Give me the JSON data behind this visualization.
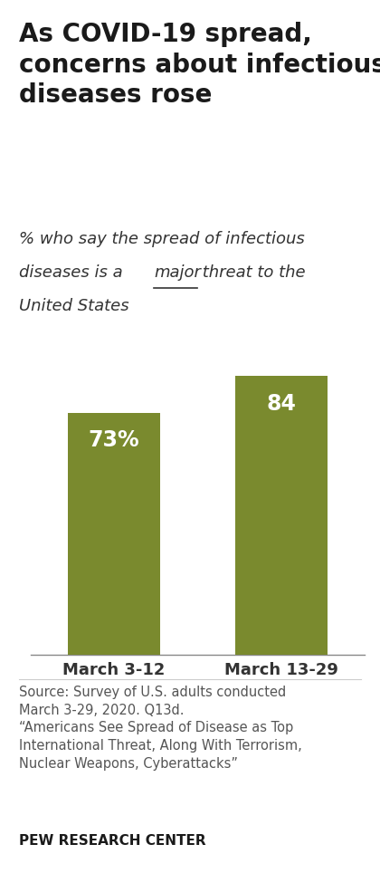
{
  "title": "As COVID-19 spread,\nconcerns about infectious\ndiseases rose",
  "categories": [
    "March 3-12",
    "March 13-29"
  ],
  "values": [
    73,
    84
  ],
  "labels": [
    "73%",
    "84"
  ],
  "bar_color": "#7a8a2e",
  "label_color": "#ffffff",
  "source_text": "Source: Survey of U.S. adults conducted\nMarch 3-29, 2020. Q13d.\n“Americans See Spread of Disease as Top\nInternational Threat, Along With Terrorism,\nNuclear Weapons, Cyberattacks”",
  "footer": "PEW RESEARCH CENTER",
  "background_color": "#ffffff",
  "ylim": [
    0,
    100
  ],
  "title_fontsize": 20,
  "subtitle_fontsize": 13,
  "label_fontsize": 17,
  "xtick_fontsize": 13,
  "source_fontsize": 10.5,
  "footer_fontsize": 11
}
